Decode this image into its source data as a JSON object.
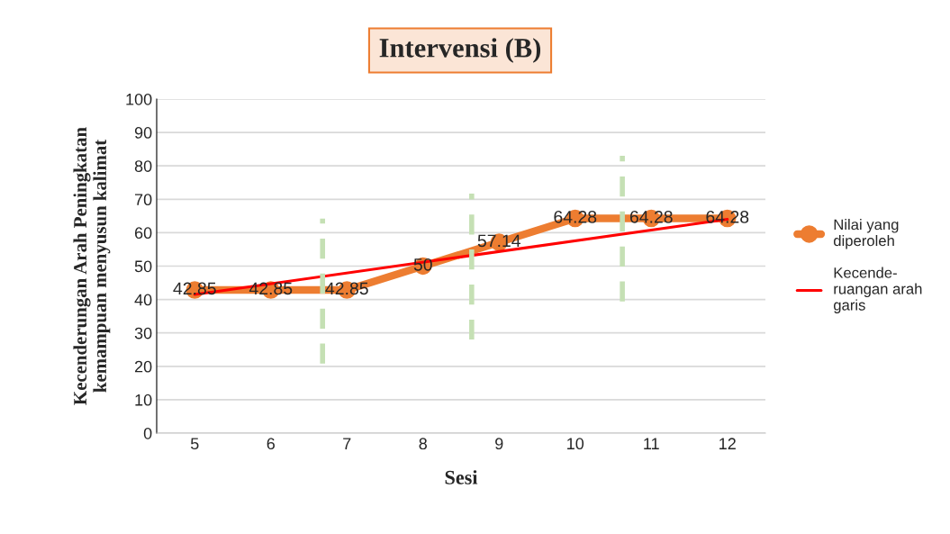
{
  "chart_data": {
    "type": "line",
    "title": "Intervensi (B)",
    "xlabel": "Sesi",
    "ylabel": "Kecenderungan Arah Peningkatan\nkemampuan menyusun kalimat",
    "x": [
      5,
      6,
      7,
      8,
      9,
      10,
      11,
      12
    ],
    "xlim": [
      4.5,
      12.5
    ],
    "xticks": [
      5,
      6,
      7,
      8,
      9,
      10,
      11,
      12
    ],
    "ylim": [
      0,
      100
    ],
    "yticks": [
      0,
      10,
      20,
      30,
      40,
      50,
      60,
      70,
      80,
      90,
      100
    ],
    "grid": "y",
    "legend": "right",
    "series": [
      {
        "name": "Nilai yang diperoleh",
        "color": "#ed7d31",
        "marker": "circle",
        "values": [
          42.85,
          42.85,
          42.85,
          50,
          57.14,
          64.28,
          64.28,
          64.28
        ],
        "value_labels": [
          "42.85",
          "42.85",
          "42.85",
          "50",
          "57.14",
          "64.28",
          "64.28",
          "64.28"
        ]
      },
      {
        "name": "Kecende-ruangan arah garis",
        "color": "#ff0000",
        "marker": "none",
        "x": [
          5,
          12
        ],
        "values": [
          41.5,
          64
        ]
      },
      {
        "color": "#c5e0b4",
        "marker": "none",
        "line_style": "dashed",
        "x": [
          6.68,
          6.68
        ],
        "values": [
          20.8,
          64.2
        ]
      },
      {
        "color": "#c5e0b4",
        "marker": "none",
        "line_style": "dashed",
        "x": [
          8.64,
          8.64
        ],
        "values": [
          28,
          71.7
        ]
      },
      {
        "color": "#c5e0b4",
        "marker": "none",
        "line_style": "dashed",
        "x": [
          10.62,
          10.62
        ],
        "values": [
          39.4,
          83
        ]
      }
    ]
  }
}
